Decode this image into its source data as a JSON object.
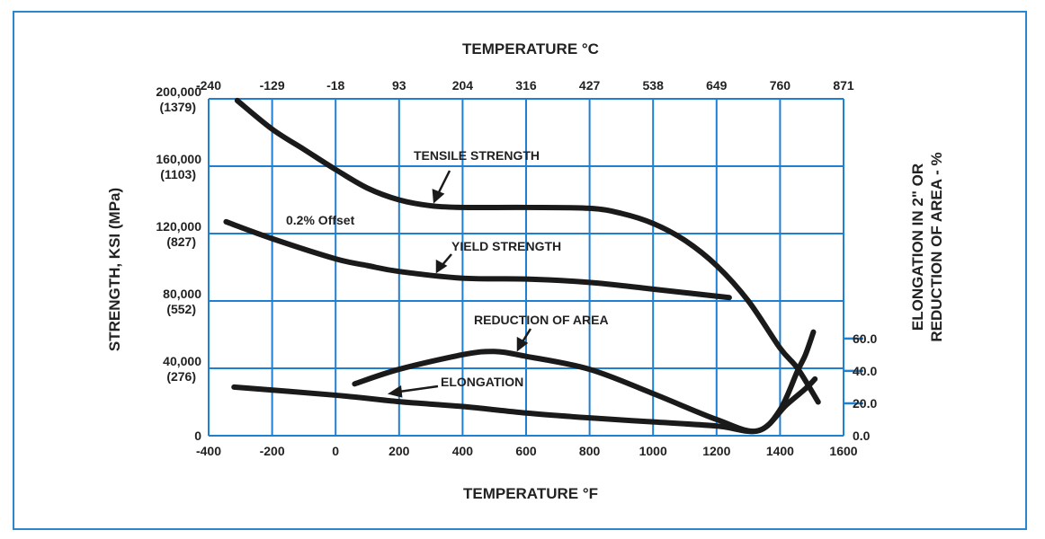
{
  "chart_data": {
    "type": "line",
    "title": "",
    "x_top_label": "TEMPERATURE °C",
    "xlabel": "TEMPERATURE °F",
    "ylabel": "STRENGTH, KSI (MPa)",
    "y2label_line1": "ELONGATION IN 2\" OR",
    "y2label_line2": "REDUCTION OF AREA - %",
    "xlim": [
      -400,
      1600
    ],
    "ylim": [
      0,
      200000
    ],
    "y2lim": [
      0,
      208
    ],
    "grid": true,
    "x_ticks": [
      "-400",
      "-200",
      "0",
      "200",
      "400",
      "600",
      "800",
      "1000",
      "1200",
      "1400",
      "1600"
    ],
    "x_top_ticks": [
      "-240",
      "-129",
      "-18",
      "93",
      "204",
      "316",
      "427",
      "538",
      "649",
      "760",
      "871"
    ],
    "y_ticks": [
      {
        "value": 200000,
        "label": "200,000",
        "sub": "(1379)"
      },
      {
        "value": 160000,
        "label": "160,000",
        "sub": "(1103)"
      },
      {
        "value": 120000,
        "label": "120,000",
        "sub": "(827)"
      },
      {
        "value": 80000,
        "label": "80,000",
        "sub": "(552)"
      },
      {
        "value": 40000,
        "label": "40,000",
        "sub": "(276)"
      },
      {
        "value": 0,
        "label": "0",
        "sub": ""
      }
    ],
    "y2_ticks": [
      {
        "value": 60,
        "label": "60.0"
      },
      {
        "value": 40,
        "label": "40.0"
      },
      {
        "value": 20,
        "label": "20.0"
      },
      {
        "value": 0,
        "label": "0.0"
      }
    ],
    "series": [
      {
        "name": "TENSILE STRENGTH",
        "axis": "left",
        "points": [
          [
            -310,
            199000
          ],
          [
            -200,
            182000
          ],
          [
            -100,
            170000
          ],
          [
            0,
            158000
          ],
          [
            100,
            147000
          ],
          [
            200,
            140000
          ],
          [
            300,
            136500
          ],
          [
            400,
            135500
          ],
          [
            600,
            135500
          ],
          [
            800,
            135000
          ],
          [
            900,
            132000
          ],
          [
            1000,
            126000
          ],
          [
            1100,
            116000
          ],
          [
            1200,
            101000
          ],
          [
            1300,
            80000
          ],
          [
            1400,
            52000
          ],
          [
            1455,
            40000
          ],
          [
            1520,
            20000
          ]
        ]
      },
      {
        "name": "YIELD STRENGTH",
        "note": "0.2% Offset",
        "axis": "left",
        "points": [
          [
            -345,
            127000
          ],
          [
            -200,
            117000
          ],
          [
            0,
            105000
          ],
          [
            100,
            101000
          ],
          [
            200,
            97500
          ],
          [
            400,
            93500
          ],
          [
            600,
            93000
          ],
          [
            800,
            91000
          ],
          [
            1000,
            87000
          ],
          [
            1240,
            82000
          ]
        ]
      },
      {
        "name": "REDUCTION OF AREA",
        "axis": "right",
        "points": [
          [
            60,
            32
          ],
          [
            200,
            41
          ],
          [
            400,
            50
          ],
          [
            500,
            52
          ],
          [
            600,
            49
          ],
          [
            800,
            41
          ],
          [
            1000,
            26
          ],
          [
            1200,
            10
          ],
          [
            1330,
            3
          ],
          [
            1420,
            19
          ],
          [
            1480,
            29
          ],
          [
            1510,
            35
          ]
        ]
      },
      {
        "name": "ELONGATION",
        "axis": "right",
        "points": [
          [
            -320,
            30
          ],
          [
            0,
            25
          ],
          [
            200,
            21
          ],
          [
            400,
            18
          ],
          [
            600,
            14
          ],
          [
            800,
            11
          ],
          [
            1000,
            8.5
          ],
          [
            1200,
            6
          ],
          [
            1330,
            3
          ],
          [
            1400,
            16
          ],
          [
            1455,
            40
          ],
          [
            1480,
            50
          ],
          [
            1505,
            64
          ]
        ]
      }
    ]
  },
  "colors": {
    "grid": "#1f7fd1",
    "frame": "#2b86d0",
    "curve": "#1a1a1a"
  }
}
